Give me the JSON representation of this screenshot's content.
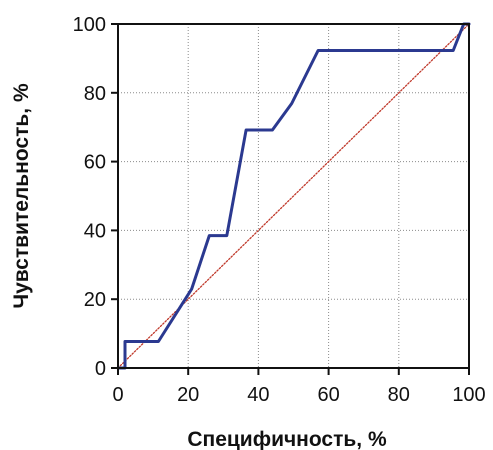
{
  "chart_data": {
    "type": "line",
    "title": "",
    "xlabel": "Специфичность, %",
    "ylabel": "Чувствительность, %",
    "xlim": [
      0,
      100
    ],
    "ylim": [
      0,
      100
    ],
    "x_ticks": [
      "0",
      "20",
      "40",
      "60",
      "80",
      "100"
    ],
    "y_ticks": [
      "0",
      "20",
      "40",
      "60",
      "80",
      "100"
    ],
    "grid": true,
    "legend": "none",
    "series": [
      {
        "color": "#2b3990",
        "style": "solid",
        "x": [
          0,
          2,
          2,
          11.5,
          21,
          26,
          31,
          36.5,
          44,
          49.5,
          57,
          86,
          95.5,
          98.5,
          100
        ],
        "y": [
          0,
          0,
          7.7,
          7.7,
          23,
          38.5,
          38.5,
          69.2,
          69.2,
          76.9,
          92.3,
          92.3,
          92.3,
          100,
          100
        ]
      },
      {
        "color": "#c0392b",
        "style": "dotted",
        "x": [
          0,
          100
        ],
        "y": [
          0,
          100
        ]
      }
    ]
  }
}
